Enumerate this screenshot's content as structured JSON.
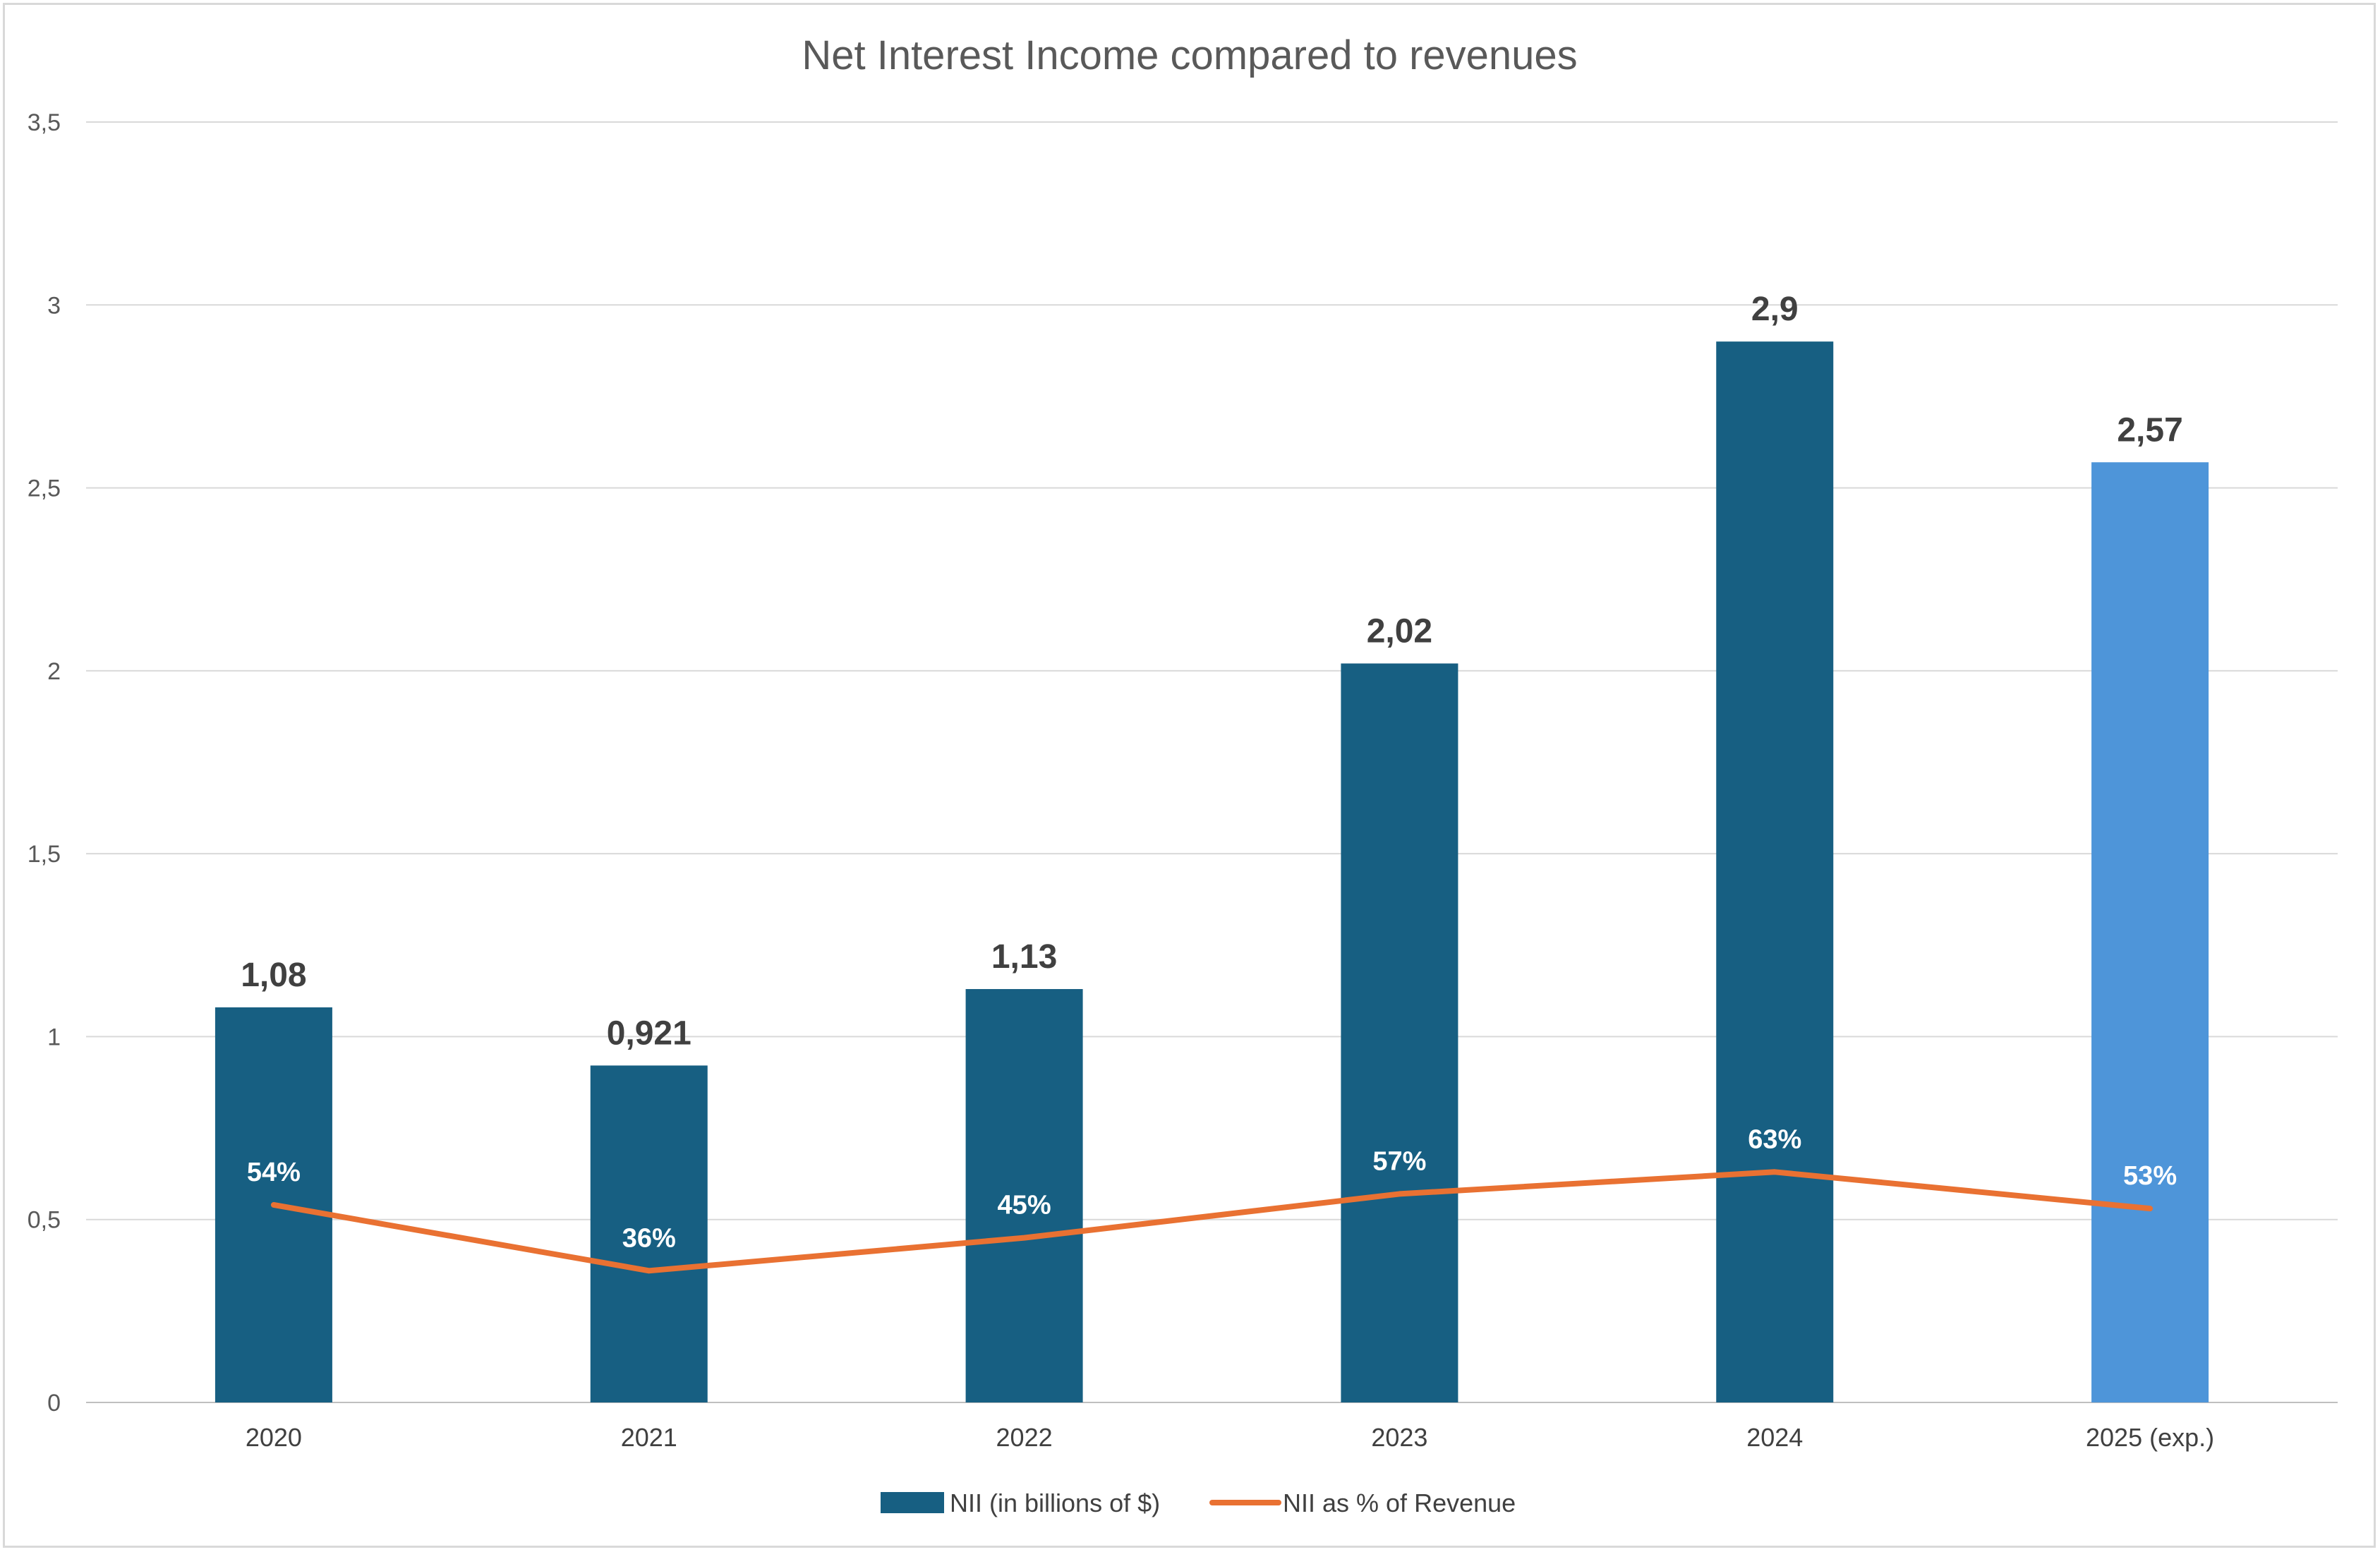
{
  "chart_data": {
    "type": "bar",
    "title": "Net Interest Income compared to revenues",
    "categories": [
      "2020",
      "2021",
      "2022",
      "2023",
      "2024",
      "2025 (exp.)"
    ],
    "ylim": [
      0,
      3.5
    ],
    "yticks": [
      "0",
      "0,5",
      "1",
      "1,5",
      "2",
      "2,5",
      "3",
      "3,5"
    ],
    "grid": true,
    "legend_position": "bottom",
    "series": [
      {
        "name": "NII (in billions of $)",
        "type": "bar",
        "values": [
          1.08,
          0.921,
          1.13,
          2.02,
          2.9,
          2.57
        ],
        "labels": [
          "1,08",
          "0,921",
          "1,13",
          "2,02",
          "2,9",
          "2,57"
        ],
        "color": "#175f82",
        "highlight_color": "#4e95d9",
        "highlight_index": 5
      },
      {
        "name": "NII as % of Revenue",
        "type": "line",
        "values": [
          54,
          36,
          45,
          57,
          63,
          53
        ],
        "labels": [
          "54%",
          "36%",
          "45%",
          "57%",
          "63%",
          "53%"
        ],
        "color": "#e97132"
      }
    ]
  }
}
